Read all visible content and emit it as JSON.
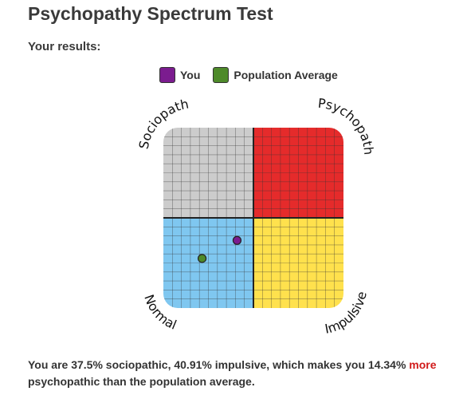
{
  "page": {
    "title": "Psychopathy Spectrum Test",
    "subtitle": "Your results:"
  },
  "legend": [
    {
      "label": "You",
      "color": "#7b1c8f",
      "icon": "purple-swatch"
    },
    {
      "label": "Population Average",
      "color": "#4e8a2a",
      "icon": "green-swatch"
    }
  ],
  "quadrants": {
    "top_left": {
      "label": "Sociopath",
      "color": "#cccccc"
    },
    "top_right": {
      "label": "Psychopath",
      "color": "#e52b2b"
    },
    "bottom_left": {
      "label": "Normal",
      "color": "#7fc7f0"
    },
    "bottom_right": {
      "label": "Impulsive",
      "color": "#ffe14d"
    }
  },
  "points": {
    "you": {
      "sociopathic_pct": 37.5,
      "impulsive_pct": 40.91,
      "color": "#7b1c8f"
    },
    "population_average": {
      "sociopathic_pct": 27.5,
      "impulsive_pct": 21.5,
      "color": "#4e8a2a"
    }
  },
  "result": {
    "text_before": "You are 37.5% sociopathic, 40.91% impulsive, which makes you 14.34%",
    "highlight": "more",
    "highlight_color": "#d11a1a",
    "text_after": "psychopathic than the population average."
  }
}
